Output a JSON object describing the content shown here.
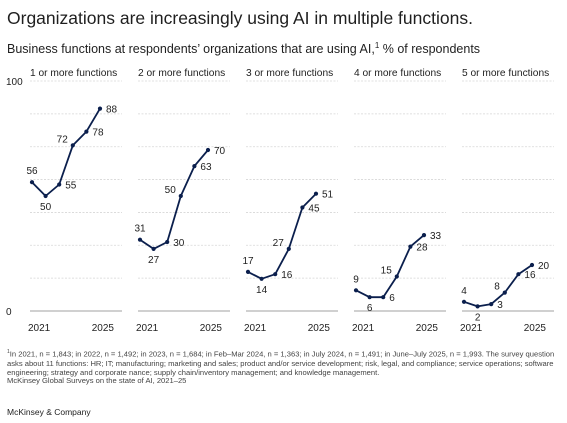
{
  "title": "Organizations are increasingly using AI in multiple functions.",
  "subtitle": {
    "text": "Business functions at respondents’ organizations that are using AI,",
    "footnote_marker": "1",
    "suffix": " % of respondents"
  },
  "chart_data": {
    "type": "line",
    "ylim": [
      0,
      100
    ],
    "y_ticks": [
      "100",
      "0"
    ],
    "x_tick_labels": [
      "2021",
      "2025"
    ],
    "grid": true,
    "x": [
      "2021",
      "2022",
      "2023",
      "Feb–Mar 2024",
      "July 2024",
      "June–July 2025"
    ],
    "series": [
      {
        "name": "1 or more functions",
        "values": [
          56,
          50,
          55,
          72,
          78,
          88
        ]
      },
      {
        "name": "2 or more functions",
        "values": [
          31,
          27,
          30,
          50,
          63,
          70
        ]
      },
      {
        "name": "3 or more functions",
        "values": [
          17,
          14,
          16,
          27,
          45,
          51
        ]
      },
      {
        "name": "4 or more functions",
        "values": [
          9,
          6,
          6,
          15,
          28,
          33
        ]
      },
      {
        "name": "5 or more functions",
        "values": [
          4,
          2,
          3,
          8,
          16,
          20
        ]
      }
    ]
  },
  "colors": {
    "line": "#0b1f4d",
    "grid": "#d6d6d6",
    "axis": "#a0a0a0"
  },
  "footnote": {
    "marker": "1",
    "text": "In 2021, n = 1,843; in 2022, n = 1,492; in 2023, n = 1,684; in Feb–Mar 2024, n = 1,363; in July 2024, n = 1,491; in June–July 2025, n = 1,993. The survey question asks about 11 functions: HR; IT; manufacturing; marketing and sales; product and/or service development; risk, legal, and compliance; service operations; software engineering; strategy and corporate  nance; supply chain/inventory management; and knowledge management."
  },
  "source": "McKinsey Global Surveys on the state of AI, 2021–25",
  "brand": "McKinsey & Company"
}
